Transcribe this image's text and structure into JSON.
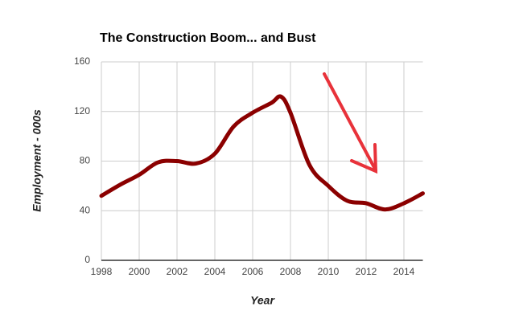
{
  "chart_data": {
    "type": "line",
    "title": "The Construction Boom... and Bust",
    "xlabel": "Year",
    "ylabel": "Employment - 000s",
    "x": [
      1998,
      1999,
      2000,
      2001,
      2002,
      2003,
      2004,
      2005,
      2006,
      2007,
      2007.5,
      2008,
      2009,
      2010,
      2011,
      2012,
      2013,
      2014,
      2015
    ],
    "series": [
      {
        "name": "Employment",
        "color": "#8b0000",
        "values": [
          52,
          61,
          69,
          79,
          80,
          78,
          86,
          108,
          119,
          127,
          132,
          119,
          77,
          60,
          48,
          46,
          41,
          46,
          54
        ]
      }
    ],
    "xlim": [
      1998,
      2015
    ],
    "xticks": [
      1998,
      2000,
      2002,
      2004,
      2006,
      2008,
      2010,
      2012,
      2014
    ],
    "ylim": [
      0,
      160
    ],
    "yticks": [
      0,
      40,
      80,
      120,
      160
    ],
    "grid": true
  }
}
